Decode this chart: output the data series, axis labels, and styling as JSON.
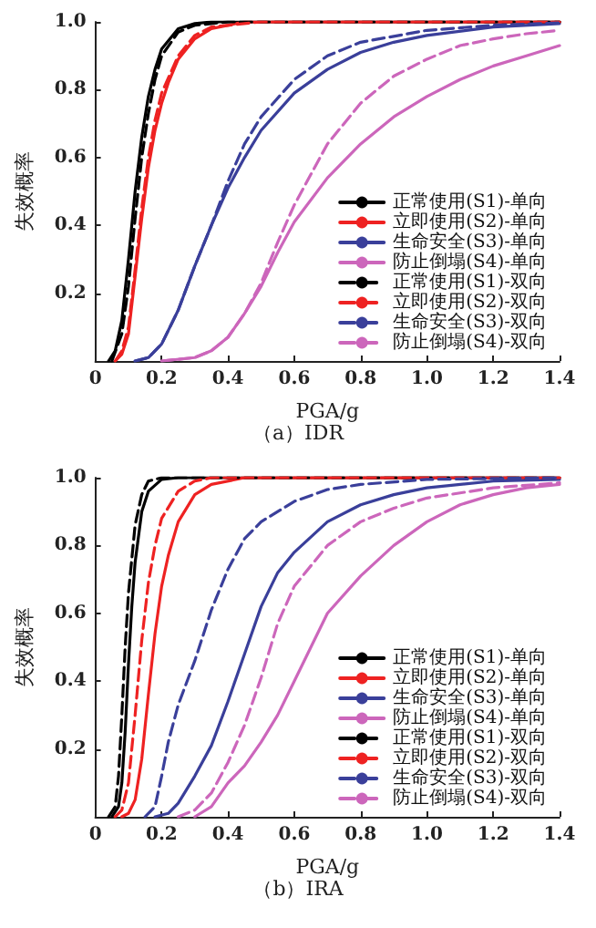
{
  "chart_data": [
    {
      "type": "line",
      "title": "（a）IDR",
      "xlabel": "PGA/g",
      "ylabel": "失效概率",
      "xlim": [
        0,
        1.4
      ],
      "ylim": [
        0,
        1
      ],
      "xticks": [
        0,
        0.2,
        0.4,
        0.6,
        0.8,
        {
          "value": 1,
          "label": "1.0"
        },
        1.2,
        1.4
      ],
      "yticks": [
        0.2,
        0.4,
        0.6,
        0.8,
        {
          "value": 1,
          "label": "1.0"
        }
      ],
      "grid": false,
      "legend": "bottom right",
      "marker": "none",
      "series": [
        {
          "name": "正常使用(S1)-单向",
          "color": "#000000",
          "line_style": "solid",
          "x": [
            0.04,
            0.06,
            0.08,
            0.1,
            0.12,
            0.14,
            0.16,
            0.18,
            0.2,
            0.25,
            0.3,
            0.35,
            1.4
          ],
          "values": [
            0,
            0.03,
            0.12,
            0.3,
            0.5,
            0.66,
            0.78,
            0.86,
            0.92,
            0.98,
            0.995,
            1,
            1
          ]
        },
        {
          "name": "立即使用(S2)-单向",
          "color": "#ee2222",
          "line_style": "solid",
          "x": [
            0.06,
            0.08,
            0.1,
            0.12,
            0.14,
            0.16,
            0.18,
            0.2,
            0.22,
            0.25,
            0.3,
            0.35,
            0.45,
            1.4
          ],
          "values": [
            0,
            0.02,
            0.08,
            0.25,
            0.42,
            0.57,
            0.68,
            0.76,
            0.82,
            0.89,
            0.95,
            0.98,
            1,
            1
          ]
        },
        {
          "name": "生命安全(S3)-单向",
          "color": "#3a3f9a",
          "line_style": "solid",
          "x": [
            0.12,
            0.16,
            0.2,
            0.25,
            0.3,
            0.35,
            0.4,
            0.45,
            0.5,
            0.6,
            0.7,
            0.8,
            0.9,
            1,
            1.2,
            1.4
          ],
          "values": [
            0,
            0.01,
            0.05,
            0.15,
            0.28,
            0.4,
            0.51,
            0.6,
            0.68,
            0.79,
            0.86,
            0.91,
            0.94,
            0.96,
            0.985,
            0.995
          ]
        },
        {
          "name": "防止倒塌(S4)-单向",
          "color": "#cc66bb",
          "line_style": "solid",
          "x": [
            0.2,
            0.3,
            0.35,
            0.4,
            0.45,
            0.5,
            0.55,
            0.6,
            0.7,
            0.8,
            0.9,
            1,
            1.1,
            1.2,
            1.3,
            1.4
          ],
          "values": [
            0,
            0.01,
            0.03,
            0.07,
            0.14,
            0.22,
            0.32,
            0.41,
            0.54,
            0.64,
            0.72,
            0.78,
            0.83,
            0.87,
            0.9,
            0.93
          ]
        },
        {
          "name": "正常使用(S1)-双向",
          "color": "#000000",
          "line_style": "dashed",
          "x": [
            0.05,
            0.08,
            0.1,
            0.12,
            0.14,
            0.16,
            0.18,
            0.2,
            0.25,
            0.3,
            0.4,
            1.4
          ],
          "values": [
            0,
            0.08,
            0.22,
            0.42,
            0.6,
            0.73,
            0.83,
            0.9,
            0.97,
            0.99,
            1,
            1
          ]
        },
        {
          "name": "立即使用(S2)-双向",
          "color": "#ee2222",
          "line_style": "dashed",
          "x": [
            0.06,
            0.08,
            0.1,
            0.12,
            0.14,
            0.16,
            0.18,
            0.2,
            0.25,
            0.3,
            0.35,
            0.5,
            1.4
          ],
          "values": [
            0,
            0.03,
            0.1,
            0.27,
            0.45,
            0.6,
            0.71,
            0.79,
            0.9,
            0.96,
            0.985,
            1,
            1
          ]
        },
        {
          "name": "生命安全(S3)-双向",
          "color": "#3a3f9a",
          "line_style": "dashed",
          "x": [
            0.12,
            0.16,
            0.2,
            0.25,
            0.3,
            0.35,
            0.4,
            0.45,
            0.5,
            0.6,
            0.7,
            0.8,
            1,
            1.2,
            1.4
          ],
          "values": [
            0,
            0.01,
            0.05,
            0.15,
            0.28,
            0.4,
            0.53,
            0.64,
            0.72,
            0.83,
            0.9,
            0.94,
            0.975,
            0.99,
            0.997
          ]
        },
        {
          "name": "防止倒塌(S4)-双向",
          "color": "#cc66bb",
          "line_style": "dashed",
          "x": [
            0.2,
            0.3,
            0.35,
            0.4,
            0.45,
            0.5,
            0.55,
            0.6,
            0.7,
            0.8,
            0.9,
            1,
            1.1,
            1.2,
            1.3,
            1.4
          ],
          "values": [
            0,
            0.01,
            0.03,
            0.07,
            0.14,
            0.23,
            0.35,
            0.46,
            0.64,
            0.76,
            0.84,
            0.89,
            0.93,
            0.95,
            0.965,
            0.975
          ]
        }
      ]
    },
    {
      "type": "line",
      "title": "（b）IRA",
      "xlabel": "PGA/g",
      "ylabel": "失效概率",
      "xlim": [
        0,
        1.4
      ],
      "ylim": [
        0,
        1
      ],
      "xticks": [
        0,
        0.2,
        0.4,
        0.6,
        0.8,
        {
          "value": 1,
          "label": "1.0"
        },
        1.2,
        1.4
      ],
      "yticks": [
        0.2,
        0.4,
        0.6,
        0.8,
        {
          "value": 1,
          "label": "1.0"
        }
      ],
      "grid": false,
      "legend": "bottom right",
      "marker": "none",
      "series": [
        {
          "name": "正常使用(S1)-单向",
          "color": "#000000",
          "line_style": "solid",
          "x": [
            0.05,
            0.07,
            0.08,
            0.09,
            0.1,
            0.11,
            0.12,
            0.14,
            0.16,
            0.2,
            0.25,
            1.4
          ],
          "values": [
            0,
            0.03,
            0.1,
            0.25,
            0.45,
            0.62,
            0.75,
            0.9,
            0.96,
            0.995,
            1,
            1
          ]
        },
        {
          "name": "立即使用(S2)-单向",
          "color": "#ee2222",
          "line_style": "solid",
          "x": [
            0.08,
            0.1,
            0.12,
            0.14,
            0.16,
            0.18,
            0.2,
            0.22,
            0.25,
            0.3,
            0.35,
            0.45,
            1.4
          ],
          "values": [
            0,
            0.01,
            0.05,
            0.17,
            0.36,
            0.54,
            0.68,
            0.77,
            0.87,
            0.95,
            0.98,
            1,
            1
          ]
        },
        {
          "name": "生命安全(S3)-单向",
          "color": "#3a3f9a",
          "line_style": "solid",
          "x": [
            0.18,
            0.22,
            0.25,
            0.3,
            0.35,
            0.4,
            0.45,
            0.5,
            0.55,
            0.6,
            0.7,
            0.8,
            0.9,
            1,
            1.2,
            1.4
          ],
          "values": [
            0,
            0.01,
            0.04,
            0.12,
            0.21,
            0.34,
            0.48,
            0.62,
            0.72,
            0.78,
            0.87,
            0.92,
            0.95,
            0.97,
            0.99,
            0.995
          ]
        },
        {
          "name": "防止倒塌(S4)-单向",
          "color": "#cc66bb",
          "line_style": "solid",
          "x": [
            0.3,
            0.35,
            0.4,
            0.45,
            0.5,
            0.55,
            0.6,
            0.65,
            0.7,
            0.8,
            0.9,
            1,
            1.1,
            1.2,
            1.3,
            1.4
          ],
          "values": [
            0,
            0.03,
            0.1,
            0.15,
            0.22,
            0.3,
            0.4,
            0.5,
            0.6,
            0.71,
            0.8,
            0.87,
            0.92,
            0.95,
            0.97,
            0.98
          ]
        },
        {
          "name": "正常使用(S1)-双向",
          "color": "#000000",
          "line_style": "dashed",
          "x": [
            0.04,
            0.06,
            0.07,
            0.08,
            0.09,
            0.1,
            0.12,
            0.14,
            0.16,
            0.2,
            1.4
          ],
          "values": [
            0,
            0.03,
            0.12,
            0.3,
            0.5,
            0.66,
            0.86,
            0.95,
            0.99,
            1,
            1
          ]
        },
        {
          "name": "立即使用(S2)-双向",
          "color": "#ee2222",
          "line_style": "dashed",
          "x": [
            0.06,
            0.08,
            0.1,
            0.12,
            0.14,
            0.16,
            0.18,
            0.2,
            0.25,
            0.3,
            0.35,
            1.4
          ],
          "values": [
            0,
            0.02,
            0.1,
            0.3,
            0.52,
            0.69,
            0.8,
            0.88,
            0.96,
            0.99,
            1,
            1
          ]
        },
        {
          "name": "生命安全(S3)-双向",
          "color": "#3a3f9a",
          "line_style": "dashed",
          "x": [
            0.15,
            0.18,
            0.2,
            0.22,
            0.25,
            0.3,
            0.35,
            0.4,
            0.45,
            0.5,
            0.6,
            0.7,
            0.8,
            1,
            1.4
          ],
          "values": [
            0,
            0.03,
            0.12,
            0.22,
            0.33,
            0.46,
            0.61,
            0.73,
            0.82,
            0.87,
            0.93,
            0.965,
            0.98,
            0.995,
            1
          ]
        },
        {
          "name": "防止倒塌(S4)-双向",
          "color": "#cc66bb",
          "line_style": "dashed",
          "x": [
            0.25,
            0.3,
            0.35,
            0.4,
            0.45,
            0.5,
            0.55,
            0.6,
            0.7,
            0.8,
            0.9,
            1,
            1.2,
            1.4
          ],
          "values": [
            0,
            0.02,
            0.07,
            0.16,
            0.27,
            0.41,
            0.57,
            0.68,
            0.8,
            0.87,
            0.91,
            0.94,
            0.97,
            0.985
          ]
        }
      ]
    }
  ]
}
